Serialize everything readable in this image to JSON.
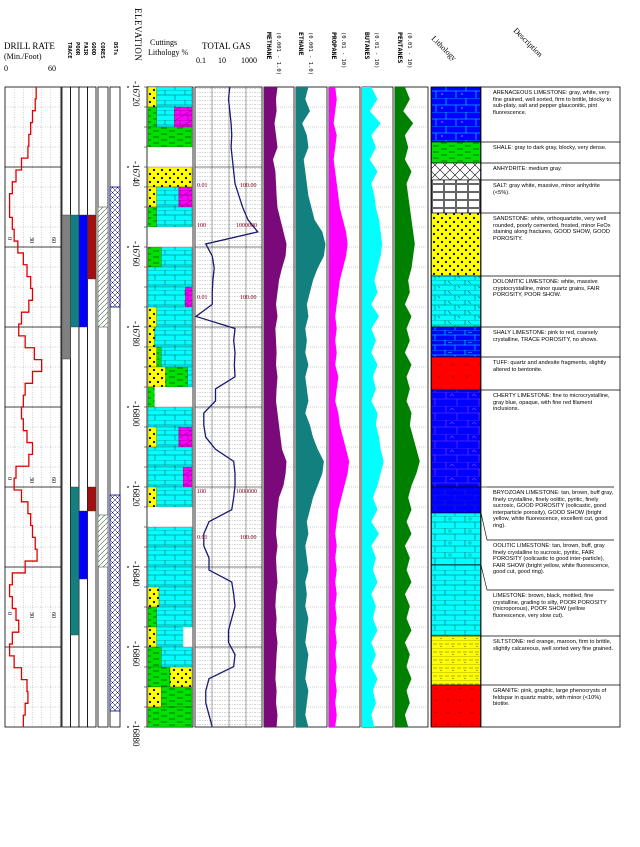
{
  "header": {
    "drill_rate": {
      "title": "DRILL RATE",
      "units": "(Min./Foot)",
      "min": "0",
      "max": "60"
    },
    "show_columns": [
      "TRACE",
      "POOR",
      "FAIR",
      "GOOD"
    ],
    "cores_label": "CORES",
    "dst_label": "DSTs",
    "elevation_label": "ELEVATION",
    "cuttings_label_1": "Cuttings",
    "cuttings_label_2": "Lithology %",
    "total_gas": {
      "title": "TOTAL GAS",
      "ticks": [
        "0.1",
        "10",
        "1000"
      ]
    },
    "gases": [
      {
        "name": "METHANE",
        "range": "(0.001 - 1.0)",
        "color": "#7a0a7a"
      },
      {
        "name": "ETHANE",
        "range": "(0.001 - 1.0)",
        "color": "#138080"
      },
      {
        "name": "PROPANE",
        "range": "(0.01 - 10)",
        "color": "#ff00ff"
      },
      {
        "name": "BUTANES",
        "range": "(0.01 - 10)",
        "color": "#00ffff"
      },
      {
        "name": "PENTANES",
        "range": "(0.01 - 10)",
        "color": "#008000"
      }
    ],
    "lithology_label": "Lithology",
    "description_label": "Description"
  },
  "elevation_ticks": [
    "-16720",
    "-16740",
    "-16760",
    "-16780",
    "-16800",
    "-16820",
    "-16840",
    "-16860",
    "-16880"
  ],
  "depth_range": [
    -16720,
    -16880
  ],
  "drill_rate_scale_labels": [
    "0",
    "30",
    "60"
  ],
  "drill_rate_min_per_ft": [
    34,
    33,
    30,
    28,
    26,
    25,
    18,
    12,
    8,
    5,
    5,
    8,
    10,
    14,
    20,
    24,
    28,
    30,
    26,
    18,
    15,
    22,
    32,
    40,
    30,
    22,
    20,
    18,
    20,
    24,
    30,
    26,
    12,
    10,
    18,
    25,
    28,
    30,
    33,
    35,
    22,
    8,
    5,
    8,
    12,
    15,
    8,
    5,
    10,
    18,
    24,
    25,
    22,
    20
  ],
  "total_gas_annotations": [
    {
      "depth": -16745,
      "low": "0.01",
      "high": "100.00"
    },
    {
      "depth": -16755,
      "low": "100",
      "high": "1000000"
    },
    {
      "depth": -16773,
      "low": "0.01",
      "high": "100.00"
    },
    {
      "depth": -16821.5,
      "low": "100",
      "high": "1000000"
    },
    {
      "depth": -16833,
      "low": "0.01",
      "high": "100.00"
    }
  ],
  "shows": [
    {
      "type": "TRACE",
      "top": -16752,
      "base": -16788,
      "color": "#808080"
    },
    {
      "type": "POOR",
      "top": -16752,
      "base": -16780,
      "color": "#138080"
    },
    {
      "type": "FAIR",
      "top": -16752,
      "base": -16780,
      "color": "#0000ff"
    },
    {
      "type": "GOOD",
      "top": -16752,
      "base": -16768,
      "color": "#a01010"
    },
    {
      "type": "POOR",
      "top": -16820,
      "base": -16857,
      "color": "#138080"
    },
    {
      "type": "FAIR",
      "top": -16826,
      "base": -16843,
      "color": "#0000ff"
    },
    {
      "type": "GOOD",
      "top": -16820,
      "base": -16826,
      "color": "#a01010"
    }
  ],
  "cores": [
    {
      "top": -16750,
      "base": -16780
    },
    {
      "top": -16827,
      "base": -16840
    }
  ],
  "dsts": [
    {
      "top": -16745,
      "base": -16775
    },
    {
      "top": -16822,
      "base": -16876
    }
  ],
  "cuttings": [
    [
      [
        "sandstone",
        20
      ],
      [
        "limestone",
        80
      ]
    ],
    [
      [
        "shale",
        20
      ],
      [
        "limestone",
        40
      ],
      [
        "dolomite",
        40
      ]
    ],
    [
      [
        "shale",
        100
      ]
    ],
    [
      [
        "none",
        100
      ]
    ],
    [
      [
        "sandstone",
        100
      ]
    ],
    [
      [
        "sandstone",
        20
      ],
      [
        "limestone",
        50
      ],
      [
        "dolomite",
        30
      ]
    ],
    [
      [
        "shale",
        20
      ],
      [
        "limestone",
        80
      ]
    ],
    [
      [
        "none",
        100
      ]
    ],
    [
      [
        "shale",
        30
      ],
      [
        "limestone",
        70
      ]
    ],
    [
      [
        "limestone",
        100
      ]
    ],
    [
      [
        "limestone",
        85
      ],
      [
        "dolomite",
        15
      ]
    ],
    [
      [
        "sandstone",
        20
      ],
      [
        "limestone",
        80
      ]
    ],
    [
      [
        "sandstone",
        15
      ],
      [
        "limestone",
        85
      ]
    ],
    [
      [
        "sandstone",
        20
      ],
      [
        "shale",
        10
      ],
      [
        "limestone",
        70
      ]
    ],
    [
      [
        "sandstone",
        40
      ],
      [
        "shale",
        50
      ],
      [
        "limestone",
        10
      ]
    ],
    [
      [
        "shale",
        15
      ],
      [
        "none",
        85
      ]
    ],
    [
      [
        "limestone",
        100
      ]
    ],
    [
      [
        "sandstone",
        20
      ],
      [
        "limestone",
        50
      ],
      [
        "dolomite",
        30
      ]
    ],
    [
      [
        "limestone",
        100
      ]
    ],
    [
      [
        "limestone",
        80
      ],
      [
        "dolomite",
        20
      ]
    ],
    [
      [
        "sandstone",
        20
      ],
      [
        "limestone",
        80
      ]
    ],
    [
      [
        "none",
        100
      ]
    ],
    [
      [
        "limestone",
        100
      ]
    ],
    [
      [
        "limestone",
        100
      ]
    ],
    [
      [
        "limestone",
        100
      ]
    ],
    [
      [
        "sandstone",
        25
      ],
      [
        "limestone",
        75
      ]
    ],
    [
      [
        "shale",
        20
      ],
      [
        "limestone",
        80
      ]
    ],
    [
      [
        "sandstone",
        20
      ],
      [
        "limestone",
        60
      ],
      [
        "none",
        20
      ]
    ],
    [
      [
        "shale",
        30
      ],
      [
        "limestone",
        70
      ]
    ],
    [
      [
        "shale",
        50
      ],
      [
        "sandstone",
        50
      ]
    ],
    [
      [
        "sandstone",
        30
      ],
      [
        "shale",
        70
      ]
    ],
    [
      [
        "shale",
        100
      ]
    ]
  ],
  "total_gas_curve": [
    0.52,
    0.5,
    0.52,
    0.54,
    0.55,
    0.54,
    0.56,
    0.58,
    0.6,
    0.66,
    0.72,
    0.8,
    0.95,
    0.15,
    0.25,
    0.28,
    0.26,
    0.25,
    0.25,
    0.0,
    0.6,
    0.58,
    0.6,
    0.59,
    0.6,
    0.3,
    0.3,
    0.12,
    0.12,
    0.15,
    0.3,
    0.58,
    0.6,
    0.6,
    0.58,
    0.55,
    0.2,
    0.12,
    0.12,
    0.2,
    0.2,
    0.55,
    0.58,
    0.6,
    0.55,
    0.5,
    0.5,
    0.6,
    0.58,
    0.2,
    0.15,
    0.15,
    0.2,
    0.25
  ],
  "gas_curves": {
    "methane": [
      0.45,
      0.4,
      0.42,
      0.35,
      0.4,
      0.45,
      0.3,
      0.38,
      0.4,
      0.42,
      0.45,
      0.55,
      0.65,
      0.75,
      0.72,
      0.6,
      0.5,
      0.45,
      0.4,
      0.45,
      0.38,
      0.4,
      0.42,
      0.4,
      0.45,
      0.42,
      0.4,
      0.45,
      0.5,
      0.55,
      0.6,
      0.75,
      0.72,
      0.65,
      0.5,
      0.45,
      0.42,
      0.4,
      0.45,
      0.4,
      0.42,
      0.45,
      0.4,
      0.38,
      0.42,
      0.4,
      0.45,
      0.42,
      0.4,
      0.38,
      0.42,
      0.4,
      0.45,
      0.42
    ],
    "ethane": [
      0.4,
      0.3,
      0.45,
      0.2,
      0.35,
      0.4,
      0.25,
      0.3,
      0.35,
      0.4,
      0.5,
      0.6,
      0.85,
      0.95,
      0.9,
      0.7,
      0.55,
      0.45,
      0.35,
      0.4,
      0.3,
      0.35,
      0.3,
      0.4,
      0.3,
      0.35,
      0.4,
      0.3,
      0.45,
      0.55,
      0.7,
      0.9,
      0.85,
      0.7,
      0.55,
      0.45,
      0.35,
      0.4,
      0.3,
      0.35,
      0.4,
      0.3,
      0.35,
      0.3,
      0.4,
      0.35,
      0.3,
      0.4,
      0.35,
      0.3,
      0.4,
      0.35,
      0.3,
      0.4
    ],
    "propane": [
      0.2,
      0.25,
      0.2,
      0.15,
      0.25,
      0.2,
      0.15,
      0.2,
      0.25,
      0.3,
      0.35,
      0.45,
      0.55,
      0.6,
      0.55,
      0.45,
      0.35,
      0.3,
      0.25,
      0.2,
      0.25,
      0.2,
      0.25,
      0.2,
      0.3,
      0.25,
      0.2,
      0.3,
      0.35,
      0.45,
      0.55,
      0.65,
      0.6,
      0.5,
      0.4,
      0.3,
      0.25,
      0.2,
      0.25,
      0.2,
      0.25,
      0.2,
      0.25,
      0.2,
      0.25,
      0.2,
      0.25,
      0.2,
      0.25,
      0.2,
      0.25,
      0.2,
      0.25,
      0.2
    ],
    "butanes": [
      0.3,
      0.5,
      0.25,
      0.6,
      0.3,
      0.45,
      0.25,
      0.5,
      0.3,
      0.4,
      0.45,
      0.55,
      0.6,
      0.65,
      0.6,
      0.5,
      0.4,
      0.5,
      0.3,
      0.55,
      0.3,
      0.45,
      0.3,
      0.5,
      0.35,
      0.45,
      0.3,
      0.5,
      0.45,
      0.55,
      0.6,
      0.7,
      0.6,
      0.5,
      0.35,
      0.5,
      0.3,
      0.55,
      0.3,
      0.45,
      0.35,
      0.5,
      0.3,
      0.45,
      0.35,
      0.5,
      0.3,
      0.45,
      0.3,
      0.5,
      0.35,
      0.45,
      0.3,
      0.4
    ],
    "pentanes": [
      0.3,
      0.45,
      0.25,
      0.55,
      0.3,
      0.4,
      0.3,
      0.5,
      0.35,
      0.4,
      0.45,
      0.5,
      0.55,
      0.6,
      0.55,
      0.5,
      0.4,
      0.45,
      0.3,
      0.5,
      0.35,
      0.45,
      0.3,
      0.5,
      0.35,
      0.45,
      0.35,
      0.5,
      0.45,
      0.55,
      0.65,
      0.75,
      0.65,
      0.5,
      0.4,
      0.5,
      0.35,
      0.5,
      0.3,
      0.45,
      0.35,
      0.5,
      0.3,
      0.45,
      0.35,
      0.5,
      0.3,
      0.45,
      0.35,
      0.5,
      0.35,
      0.45,
      0.3,
      0.4
    ]
  },
  "intervals": [
    {
      "top": -16720,
      "base": -16733.75,
      "pattern": "arenaceous",
      "title": "ARENACEOUS LIMESTONE:",
      "text": "gray, white, very fine grained, well sorted, firm to brittle, blocky to sub-platy, salt and pepper glauconitic, pint fluorescence."
    },
    {
      "top": -16733.75,
      "base": -16739,
      "pattern": "shale",
      "title": "SHALE:",
      "text": "gray to dark gray, blocky, very dense."
    },
    {
      "top": -16739,
      "base": -16743.25,
      "pattern": "anhydrite",
      "title": "ANHYDRITE:",
      "text": "medium gray."
    },
    {
      "top": -16743.25,
      "base": -16751.5,
      "pattern": "salt",
      "title": "SALT:",
      "text": "gray white, massive, minor anhydrite (<5%)."
    },
    {
      "top": -16751.5,
      "base": -16767.25,
      "pattern": "sandstone",
      "title": "SANDSTONE:",
      "text": "white, orthoquartzite, very well rounded, poorly cemented, frosted, minor FeOx staining along fractures, GOOD SHOW, GOOD POROSITY."
    },
    {
      "top": -16767.25,
      "base": -16780,
      "pattern": "dolomite",
      "title": "DOLOMITIC LIMESTONE:",
      "text": "white, massive cryptocrystalline, minor quartz grains, FAIR POROSITY, POOR SHOW."
    },
    {
      "top": -16780,
      "base": -16787.5,
      "pattern": "shalyls",
      "title": "SHALY LIMESTONE:",
      "text": "pink to red, coarsely crystalline, TRACE POROSITY, no shows."
    },
    {
      "top": -16787.5,
      "base": -16795.75,
      "pattern": "tuff",
      "title": "TUFF:",
      "text": "quartz and andesite fragments, slightly altered to bentonite."
    },
    {
      "top": -16795.75,
      "base": -16820,
      "pattern": "cherty",
      "title": "CHERTY LIMESTONE:",
      "text": "fine to microcrystalline, gray blue, opaque, with fine red filament inclusions."
    },
    {
      "top": -16820,
      "base": -16826.5,
      "pattern": "bryozoan",
      "title": "BRYOZOAN LIMESTONE:",
      "text": "tan, brown, buff gray, finely crystalline, finely oolitic, pyritic, finely sucrosic, GOOD POROSITY (oolicastic, good interparticle porosity), GOOD SHOW (bright yellow, white fluorescence, excellent cut, good ring)."
    },
    {
      "top": -16826.5,
      "base": -16839.5,
      "pattern": "oolitic",
      "title": "OOLITIC LIMESTONE:",
      "text": "tan, brown, buff, gray finely crystalline to sucrosic, pyritic, FAIR POROSITY (oolicastic to good inter-particle), FAIR SHOW (bright yellow, white fluorescence, good cut, good ring)."
    },
    {
      "top": -16839.5,
      "base": -16857.25,
      "pattern": "limestone",
      "title": "LIMESTONE:",
      "text": "brown, black, mottled, fine crystalline, grading to silty, POOR POROSITY (microporous), POOR SHOW (yellow fluorescence, very slow cut)."
    },
    {
      "top": -16857.25,
      "base": -16869.5,
      "pattern": "siltstone",
      "title": "SILTSTONE:",
      "text": "red orange, maroon, firm to brittle, slightly calcareous, well sorted very fine grained."
    },
    {
      "top": -16869.5,
      "base": -16880,
      "pattern": "granite",
      "title": "GRANITE:",
      "text": "pink, graphic, large phenocrysts of feldspar in quartz matrix, with minor (<10%) biotite."
    }
  ]
}
